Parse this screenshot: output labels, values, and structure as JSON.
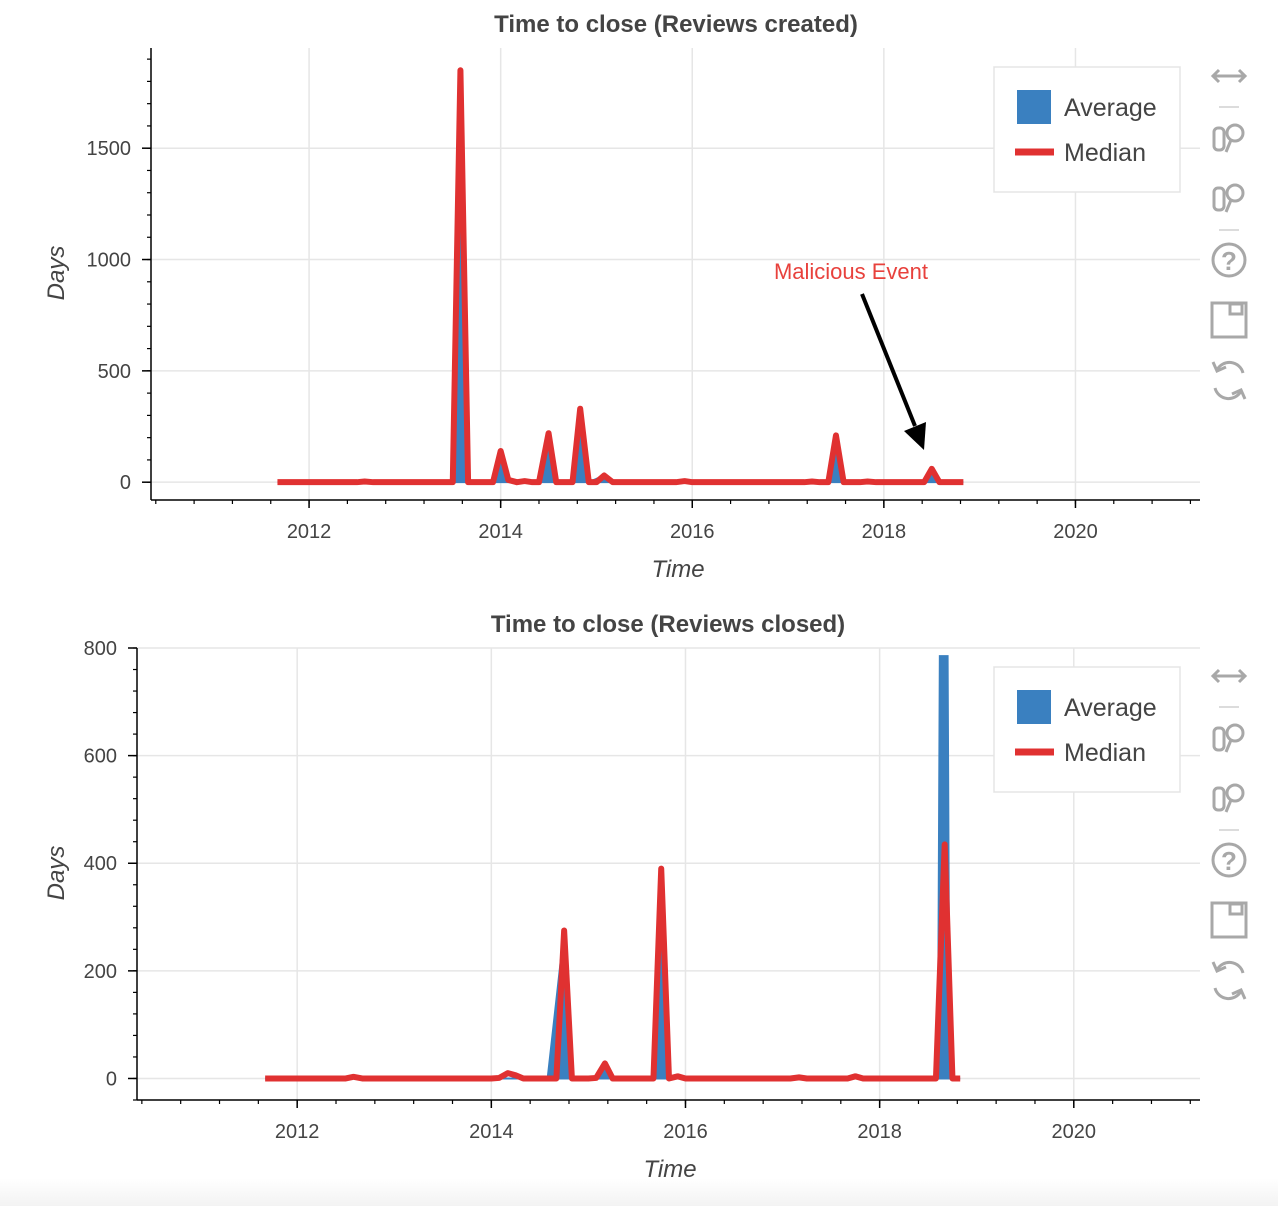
{
  "chart_data": [
    {
      "type": "line",
      "title": "Time to close (Reviews created)",
      "xlabel": "Time",
      "ylabel": "Days",
      "xlim": [
        2010.35,
        2021.3
      ],
      "ylim": [
        -80,
        1950
      ],
      "xticks": [
        2012,
        2014,
        2016,
        2018,
        2020
      ],
      "yticks": [
        0,
        500,
        1000,
        1500
      ],
      "xtick_labels": [
        "2012",
        "2014",
        "2016",
        "2018",
        "2020"
      ],
      "ytick_labels": [
        "0",
        "500",
        "1000",
        "1500"
      ],
      "grid": true,
      "legend_position": "top-right",
      "legend": [
        "Average",
        "Median"
      ],
      "annotation": {
        "text": "Malicious Event",
        "x": 2018.5,
        "y": 60,
        "color": "#e8413c"
      },
      "series": [
        {
          "name": "Average",
          "style": "area",
          "color": "#3a80c0",
          "points": [
            [
              2011.67,
              0
            ],
            [
              2013.5,
              0
            ],
            [
              2013.58,
              1850
            ],
            [
              2013.66,
              0
            ],
            [
              2013.92,
              0
            ],
            [
              2014.0,
              140
            ],
            [
              2014.08,
              0
            ],
            [
              2014.4,
              0
            ],
            [
              2014.5,
              220
            ],
            [
              2014.58,
              0
            ],
            [
              2014.75,
              0
            ],
            [
              2014.83,
              330
            ],
            [
              2014.92,
              0
            ],
            [
              2015.08,
              30
            ],
            [
              2015.17,
              0
            ],
            [
              2017.42,
              0
            ],
            [
              2017.5,
              210
            ],
            [
              2017.58,
              0
            ],
            [
              2018.42,
              0
            ],
            [
              2018.5,
              60
            ],
            [
              2018.58,
              0
            ],
            [
              2018.83,
              0
            ]
          ]
        },
        {
          "name": "Median",
          "style": "line",
          "color": "#e03131",
          "points": [
            [
              2011.67,
              0
            ],
            [
              2012.5,
              0
            ],
            [
              2012.58,
              3
            ],
            [
              2012.67,
              0
            ],
            [
              2013.5,
              0
            ],
            [
              2013.58,
              1850
            ],
            [
              2013.66,
              0
            ],
            [
              2013.92,
              0
            ],
            [
              2014.0,
              140
            ],
            [
              2014.08,
              10
            ],
            [
              2014.17,
              0
            ],
            [
              2014.25,
              5
            ],
            [
              2014.33,
              0
            ],
            [
              2014.4,
              0
            ],
            [
              2014.5,
              220
            ],
            [
              2014.58,
              0
            ],
            [
              2014.75,
              0
            ],
            [
              2014.83,
              330
            ],
            [
              2014.92,
              0
            ],
            [
              2015.0,
              0
            ],
            [
              2015.08,
              30
            ],
            [
              2015.17,
              0
            ],
            [
              2015.83,
              0
            ],
            [
              2015.92,
              5
            ],
            [
              2016.0,
              0
            ],
            [
              2017.17,
              0
            ],
            [
              2017.25,
              3
            ],
            [
              2017.33,
              0
            ],
            [
              2017.42,
              0
            ],
            [
              2017.5,
              210
            ],
            [
              2017.58,
              0
            ],
            [
              2017.75,
              0
            ],
            [
              2017.83,
              3
            ],
            [
              2017.92,
              0
            ],
            [
              2018.42,
              0
            ],
            [
              2018.5,
              60
            ],
            [
              2018.58,
              0
            ],
            [
              2018.83,
              0
            ]
          ]
        }
      ]
    },
    {
      "type": "line",
      "title": "Time to close (Reviews closed)",
      "xlabel": "Time",
      "ylabel": "Days",
      "xlim": [
        2010.35,
        2021.3
      ],
      "ylim": [
        -40,
        800
      ],
      "xticks": [
        2012,
        2014,
        2016,
        2018,
        2020
      ],
      "yticks": [
        0,
        200,
        400,
        600,
        800
      ],
      "xtick_labels": [
        "2012",
        "2014",
        "2016",
        "2018",
        "2020"
      ],
      "ytick_labels": [
        "0",
        "200",
        "400",
        "600",
        "800"
      ],
      "grid": true,
      "legend_position": "top-right",
      "legend": [
        "Average",
        "Median"
      ],
      "series": [
        {
          "name": "Average",
          "style": "area",
          "color": "#3a80c0",
          "points": [
            [
              2011.67,
              0
            ],
            [
              2014.58,
              0
            ],
            [
              2014.75,
              275
            ],
            [
              2014.83,
              0
            ],
            [
              2015.08,
              0
            ],
            [
              2015.17,
              28
            ],
            [
              2015.25,
              0
            ],
            [
              2015.67,
              0
            ],
            [
              2015.75,
              390
            ],
            [
              2015.83,
              0
            ],
            [
              2018.6,
              0
            ],
            [
              2018.62,
              785
            ],
            [
              2018.7,
              785
            ],
            [
              2018.72,
              0
            ],
            [
              2018.83,
              0
            ]
          ]
        },
        {
          "name": "Median",
          "style": "line",
          "color": "#e03131",
          "points": [
            [
              2011.67,
              0
            ],
            [
              2012.5,
              0
            ],
            [
              2012.58,
              3
            ],
            [
              2012.67,
              0
            ],
            [
              2013.75,
              0
            ],
            [
              2014.0,
              0
            ],
            [
              2014.08,
              1
            ],
            [
              2014.17,
              10
            ],
            [
              2014.25,
              6
            ],
            [
              2014.33,
              0
            ],
            [
              2014.58,
              0
            ],
            [
              2014.67,
              0
            ],
            [
              2014.75,
              275
            ],
            [
              2014.83,
              0
            ],
            [
              2015.0,
              0
            ],
            [
              2015.08,
              1
            ],
            [
              2015.17,
              28
            ],
            [
              2015.25,
              0
            ],
            [
              2015.58,
              0
            ],
            [
              2015.67,
              0
            ],
            [
              2015.75,
              390
            ],
            [
              2015.83,
              0
            ],
            [
              2015.92,
              4
            ],
            [
              2016.0,
              0
            ],
            [
              2017.08,
              0
            ],
            [
              2017.17,
              2
            ],
            [
              2017.25,
              0
            ],
            [
              2017.67,
              0
            ],
            [
              2017.75,
              4
            ],
            [
              2017.83,
              0
            ],
            [
              2018.5,
              0
            ],
            [
              2018.58,
              0
            ],
            [
              2018.67,
              435
            ],
            [
              2018.75,
              0
            ],
            [
              2018.83,
              0
            ]
          ]
        }
      ]
    }
  ],
  "toolbar": {
    "tools": [
      "pan-icon",
      "box-zoom-icon",
      "wheel-zoom-icon",
      "help-icon",
      "save-icon",
      "reset-icon"
    ]
  }
}
